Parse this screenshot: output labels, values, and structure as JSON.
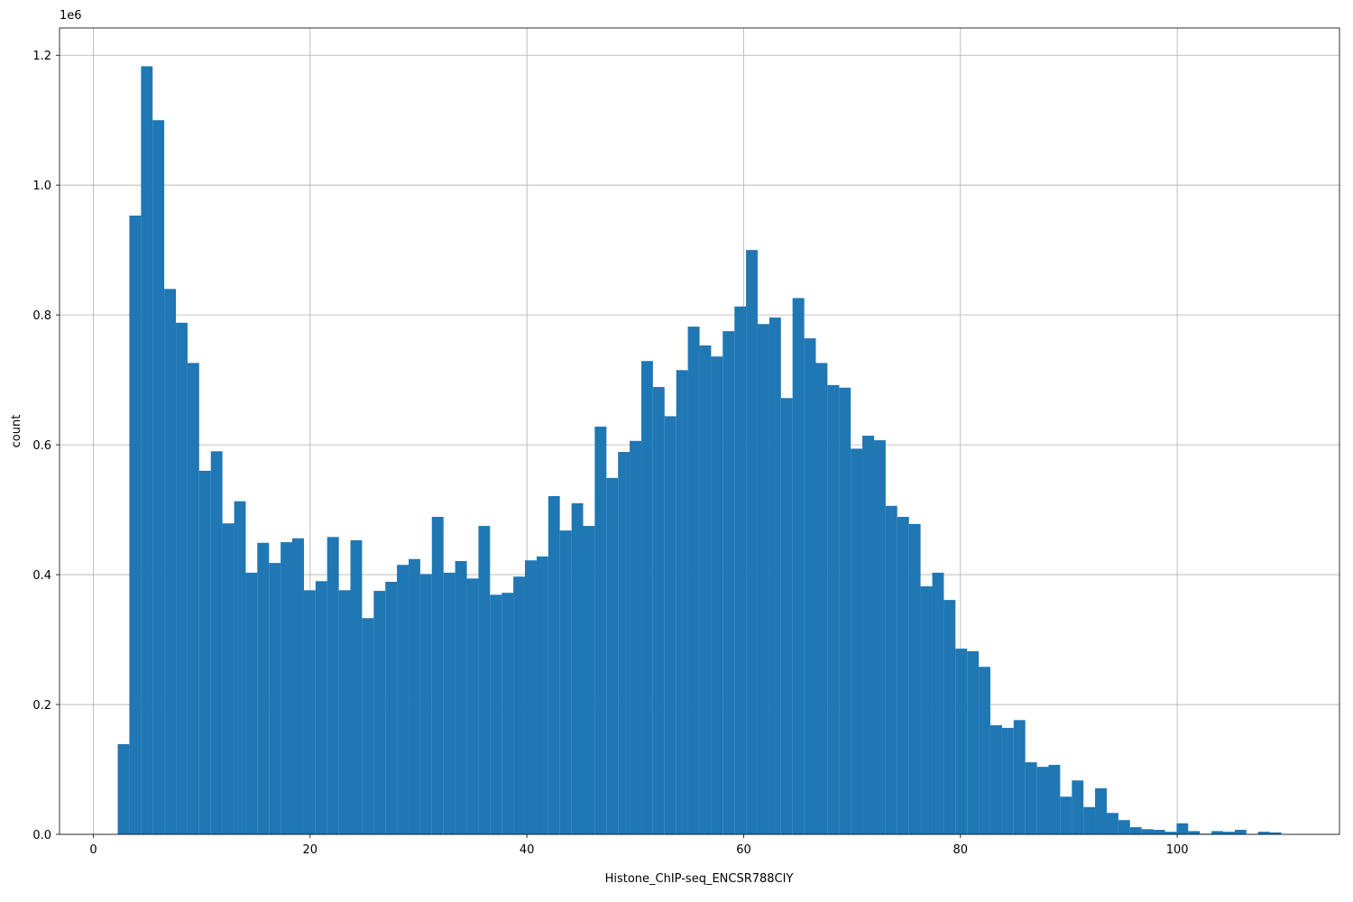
{
  "chart_data": {
    "type": "histogram",
    "x_label": "Histone_ChIP-seq_ENCSR788CIY",
    "y_label": "count",
    "y_offset_label": "1e6",
    "color": "#1f77b4",
    "grid": true,
    "bins": [
      2.25,
      3.32,
      4.4,
      5.47,
      6.54,
      7.62,
      8.69,
      9.76,
      10.84,
      11.91,
      12.99,
      14.06,
      15.13,
      16.21,
      17.28,
      18.35,
      19.43,
      20.5,
      21.57,
      22.65,
      23.72,
      24.79,
      25.87,
      26.94,
      28.01,
      29.09,
      30.16,
      31.23,
      32.31,
      33.38,
      34.46,
      35.53,
      36.6,
      37.68,
      38.75,
      39.82,
      40.9,
      41.97,
      43.04,
      44.12,
      45.19,
      46.26,
      47.34,
      48.41,
      49.48,
      50.56,
      51.63,
      52.7,
      53.78,
      54.85,
      55.93,
      57.0,
      58.07,
      59.15,
      60.22,
      61.29,
      62.37,
      63.44,
      64.51,
      65.59,
      66.66,
      67.73,
      68.81,
      69.88,
      70.95,
      72.03,
      73.1,
      74.17,
      75.25,
      76.32,
      77.4,
      78.47,
      79.54,
      80.62,
      81.69,
      82.76,
      83.84,
      84.91,
      85.98,
      87.06,
      88.13,
      89.2,
      90.28,
      91.35,
      92.42,
      93.5,
      94.57,
      95.64,
      96.72,
      97.79,
      98.87,
      99.94,
      101.01,
      102.09,
      103.16,
      104.23,
      105.31,
      106.38,
      107.45,
      108.53,
      109.6
    ],
    "values": [
      139000,
      953000,
      1183000,
      1100000,
      840000,
      788000,
      726000,
      560000,
      590000,
      479000,
      513000,
      403000,
      449000,
      418000,
      450000,
      456000,
      376000,
      390000,
      458000,
      376000,
      453000,
      333000,
      375000,
      389000,
      415000,
      424000,
      401000,
      489000,
      403000,
      421000,
      394000,
      475000,
      369000,
      372000,
      397000,
      422000,
      428000,
      521000,
      468000,
      510000,
      475000,
      628000,
      549000,
      589000,
      606000,
      729000,
      689000,
      644000,
      715000,
      782000,
      753000,
      736000,
      775000,
      813000,
      900000,
      786000,
      796000,
      672000,
      826000,
      764000,
      726000,
      692000,
      688000,
      594000,
      614000,
      607000,
      506000,
      489000,
      478000,
      382000,
      403000,
      361000,
      286000,
      282000,
      258000,
      168000,
      164000,
      176000,
      111000,
      104000,
      107000,
      58000,
      83000,
      42000,
      71000,
      33000,
      22000,
      11000,
      8000,
      7000,
      4000,
      17000,
      5000,
      1000,
      5000,
      4000,
      7000,
      500,
      4000,
      3000
    ],
    "xlim": [
      -3.12,
      114.97
    ],
    "ylim": [
      0,
      1242000
    ],
    "xticks": [
      0,
      20,
      40,
      60,
      80,
      100
    ],
    "yticks": [
      {
        "value": 0,
        "label": "0.0"
      },
      {
        "value": 200000,
        "label": "0.2"
      },
      {
        "value": 400000,
        "label": "0.4"
      },
      {
        "value": 600000,
        "label": "0.6"
      },
      {
        "value": 800000,
        "label": "0.8"
      },
      {
        "value": 1000000,
        "label": "1.0"
      },
      {
        "value": 1200000,
        "label": "1.2"
      }
    ]
  }
}
